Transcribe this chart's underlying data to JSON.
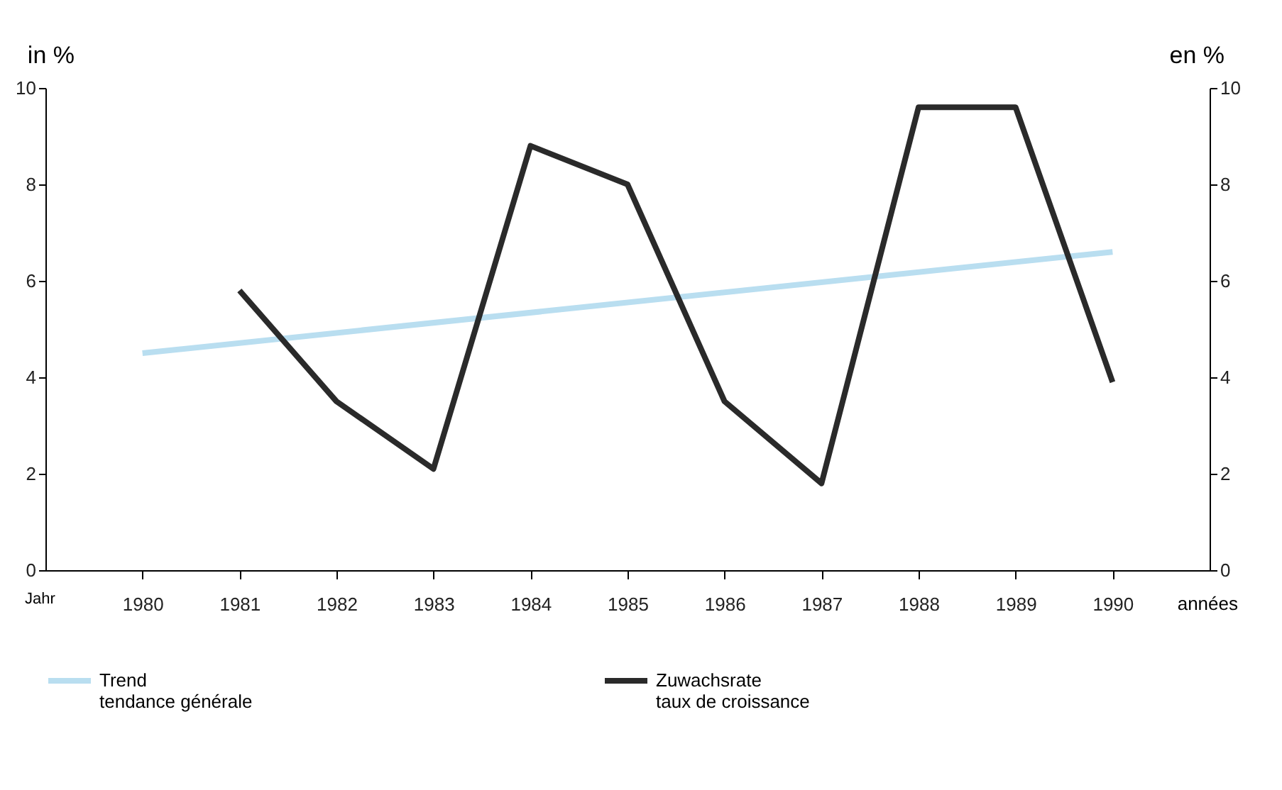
{
  "chart_data": {
    "type": "line",
    "ylabel": "in %",
    "y2label": "en %",
    "xlabel": "Jahr",
    "categories": [
      "1980",
      "1981",
      "1982",
      "1983",
      "1984",
      "1985",
      "1986",
      "1987",
      "1988",
      "1989",
      "1990"
    ],
    "series": [
      {
        "name": "Trend\ntendance générale",
        "color": "#b9def0",
        "values": [
          4.5,
          null,
          null,
          null,
          null,
          null,
          null,
          null,
          null,
          null,
          6.6
        ]
      },
      {
        "name": "Zuwachsrate\ntaux de croissance",
        "color": "#2a2a2a",
        "values": [
          null,
          5.8,
          3.5,
          2.1,
          8.8,
          8.0,
          3.5,
          1.8,
          9.6,
          9.6,
          3.9
        ]
      }
    ],
    "ylim": [
      0,
      10
    ],
    "yticks": [
      0,
      2,
      4,
      6,
      8,
      10
    ],
    "y2lim": [
      0,
      10
    ],
    "y2ticks": [
      0,
      2,
      4,
      6,
      8,
      10
    ],
    "annotations": [
      "années"
    ],
    "grid": false,
    "legend": "bottom",
    "marker": "none",
    "line_style": "solid"
  }
}
